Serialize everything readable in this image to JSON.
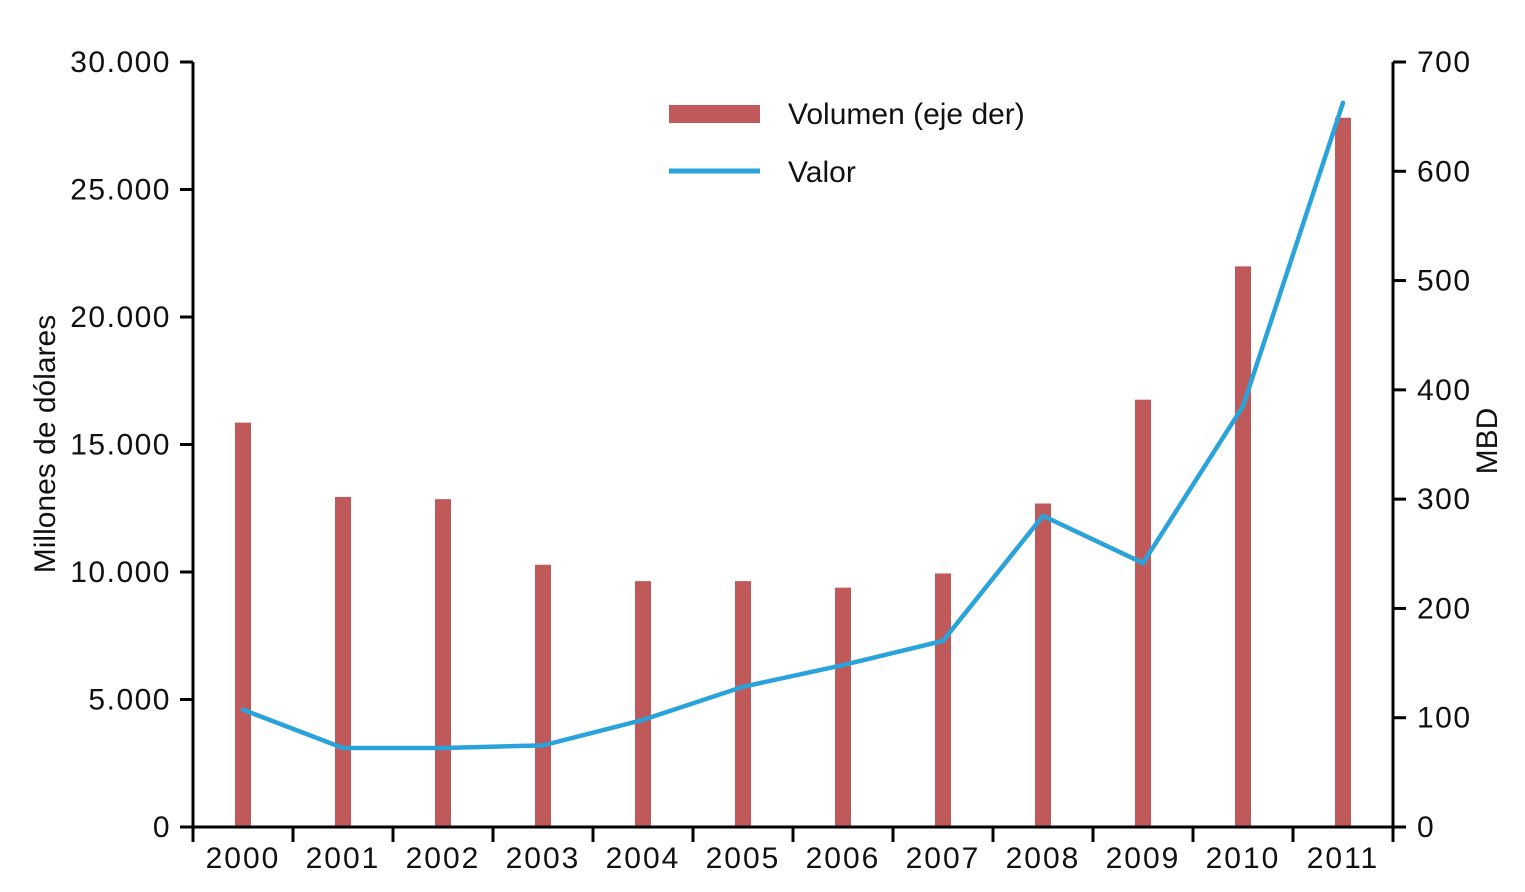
{
  "legend": {
    "items": [
      {
        "label": "Volumen (eje der)",
        "swatch": "bar-swatch",
        "color": "#c0595a"
      },
      {
        "label": "Valor",
        "swatch": "line-swatch",
        "color": "#29a3d9"
      }
    ]
  },
  "chart_data": {
    "type": "combo",
    "categories": [
      "2000",
      "2001",
      "2002",
      "2003",
      "2004",
      "2005",
      "2006",
      "2007",
      "2008",
      "2009",
      "2010",
      "2011"
    ],
    "series": [
      {
        "name": "Volumen (eje der)",
        "type": "bar",
        "axis": "right",
        "color": "#c0595a",
        "values": [
          370,
          302,
          300,
          240,
          225,
          225,
          219,
          232,
          296,
          391,
          513,
          649
        ]
      },
      {
        "name": "Valor",
        "type": "line",
        "axis": "left",
        "color": "#29a3d9",
        "values": [
          4600,
          3100,
          3100,
          3200,
          4200,
          5500,
          6350,
          7300,
          12200,
          10350,
          16500,
          28400
        ]
      }
    ],
    "left_axis": {
      "label": "Millones de dólares",
      "min": 0,
      "max": 30000,
      "step": 5000,
      "tick_labels": [
        "0",
        "5.000",
        "10.000",
        "15.000",
        "20.000",
        "25.000",
        "30.000"
      ]
    },
    "right_axis": {
      "label": "MBD",
      "min": 0,
      "max": 700,
      "step": 100,
      "tick_labels": [
        "0",
        "100",
        "200",
        "300",
        "400",
        "500",
        "600",
        "700"
      ]
    },
    "x_axis": {
      "tick_position": "between-categories"
    },
    "grid": false,
    "legend_position": "top-center",
    "axis_color": "#000000",
    "text_color": "#111111"
  }
}
